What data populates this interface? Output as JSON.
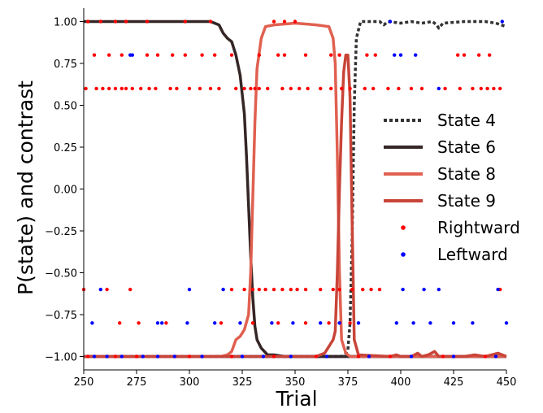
{
  "chart_data": {
    "type": "line",
    "title": "",
    "xlabel": "Trial",
    "ylabel": "P(state) and contrast",
    "xlim": [
      250,
      450
    ],
    "ylim": [
      -1.08,
      1.08
    ],
    "xticks": [
      250,
      275,
      300,
      325,
      350,
      375,
      400,
      425,
      450
    ],
    "yticks": [
      -1.0,
      -0.75,
      -0.5,
      -0.25,
      0.0,
      0.25,
      0.5,
      0.75,
      1.0
    ],
    "xtick_labels": [
      "250",
      "275",
      "300",
      "325",
      "350",
      "375",
      "400",
      "425",
      "450"
    ],
    "ytick_labels": [
      "−1.00",
      "−0.75",
      "−0.50",
      "−0.25",
      "0.00",
      "0.25",
      "0.50",
      "0.75",
      "1.00"
    ],
    "grid": false,
    "legend_position": "center-right",
    "series": [
      {
        "name": "State 4",
        "style": "dotted",
        "color": "#333333",
        "points": [
          [
            250,
            -1.0
          ],
          [
            372,
            -1.0
          ],
          [
            374,
            -0.98
          ],
          [
            375,
            -0.96
          ],
          [
            376,
            -0.8
          ],
          [
            377,
            -0.3
          ],
          [
            378,
            0.5
          ],
          [
            379,
            0.9
          ],
          [
            381,
            1.0
          ],
          [
            390,
            1.0
          ],
          [
            392,
            0.98
          ],
          [
            394,
            1.0
          ],
          [
            400,
            0.99
          ],
          [
            405,
            1.0
          ],
          [
            410,
            0.99
          ],
          [
            415,
            1.0
          ],
          [
            417,
            0.98
          ],
          [
            418,
            0.96
          ],
          [
            420,
            0.99
          ],
          [
            430,
            1.0
          ],
          [
            440,
            1.0
          ],
          [
            445,
            0.99
          ],
          [
            450,
            0.97
          ]
        ]
      },
      {
        "name": "State 6",
        "style": "solid",
        "color": "#352626",
        "points": [
          [
            250,
            1.0
          ],
          [
            310,
            1.0
          ],
          [
            314,
            0.98
          ],
          [
            316,
            0.93
          ],
          [
            318,
            0.9
          ],
          [
            320,
            0.88
          ],
          [
            322,
            0.8
          ],
          [
            324,
            0.68
          ],
          [
            326,
            0.45
          ],
          [
            327,
            0.2
          ],
          [
            328,
            -0.1
          ],
          [
            329,
            -0.4
          ],
          [
            330,
            -0.65
          ],
          [
            331,
            -0.82
          ],
          [
            332,
            -0.9
          ],
          [
            334,
            -0.95
          ],
          [
            337,
            -0.99
          ],
          [
            340,
            -0.99
          ],
          [
            345,
            -1.0
          ],
          [
            450,
            -1.0
          ]
        ]
      },
      {
        "name": "State 8",
        "style": "solid",
        "color": "#e06050",
        "points": [
          [
            250,
            -1.0
          ],
          [
            315,
            -1.0
          ],
          [
            318,
            -0.99
          ],
          [
            320,
            -0.97
          ],
          [
            322,
            -0.9
          ],
          [
            324,
            -0.88
          ],
          [
            326,
            -0.84
          ],
          [
            328,
            -0.75
          ],
          [
            329,
            -0.5
          ],
          [
            330,
            -0.05
          ],
          [
            331,
            0.4
          ],
          [
            332,
            0.72
          ],
          [
            334,
            0.9
          ],
          [
            336,
            0.97
          ],
          [
            340,
            0.98
          ],
          [
            350,
            0.99
          ],
          [
            360,
            0.98
          ],
          [
            366,
            0.97
          ],
          [
            368,
            0.9
          ],
          [
            369,
            0.75
          ],
          [
            370,
            0.2
          ],
          [
            371,
            -0.5
          ],
          [
            372,
            -0.9
          ],
          [
            374,
            -0.98
          ],
          [
            376,
            -1.0
          ],
          [
            450,
            -1.0
          ]
        ]
      },
      {
        "name": "State 9",
        "style": "solid",
        "color": "#c94438",
        "points": [
          [
            250,
            -1.0
          ],
          [
            360,
            -1.0
          ],
          [
            364,
            -0.98
          ],
          [
            366,
            -0.94
          ],
          [
            368,
            -0.9
          ],
          [
            369,
            -0.85
          ],
          [
            370,
            -0.5
          ],
          [
            371,
            0.0
          ],
          [
            372,
            0.4
          ],
          [
            373,
            0.7
          ],
          [
            374,
            0.8
          ],
          [
            375,
            0.8
          ],
          [
            376,
            0.55
          ],
          [
            377,
            -0.2
          ],
          [
            378,
            -0.9
          ],
          [
            380,
            -0.99
          ],
          [
            395,
            -1.0
          ],
          [
            398,
            -0.99
          ],
          [
            400,
            -1.0
          ],
          [
            405,
            -1.0
          ],
          [
            408,
            -0.98
          ],
          [
            410,
            -1.0
          ],
          [
            413,
            -0.99
          ],
          [
            416,
            -0.97
          ],
          [
            418,
            -1.0
          ],
          [
            430,
            -1.0
          ],
          [
            435,
            -0.99
          ],
          [
            440,
            -1.0
          ],
          [
            446,
            -0.98
          ],
          [
            450,
            -1.0
          ]
        ]
      },
      {
        "name": "Rightward",
        "style": "markers",
        "color": "#ff0000",
        "points": [
          [
            252,
            1.0
          ],
          [
            255,
            0.8
          ],
          [
            262,
            0.8
          ],
          [
            268,
            0.8
          ],
          [
            280,
            0.8
          ],
          [
            285,
            0.8
          ],
          [
            292,
            0.8
          ],
          [
            298,
            0.8
          ],
          [
            306,
            0.8
          ],
          [
            312,
            0.8
          ],
          [
            320,
            0.8
          ],
          [
            333,
            0.8
          ],
          [
            342,
            0.8
          ],
          [
            345,
            0.8
          ],
          [
            355,
            0.8
          ],
          [
            367,
            0.8
          ],
          [
            371,
            0.8
          ],
          [
            384,
            0.8
          ],
          [
            388,
            0.8
          ],
          [
            427,
            0.8
          ],
          [
            430,
            0.8
          ],
          [
            437,
            0.8
          ],
          [
            442,
            0.8
          ],
          [
            251,
            0.6
          ],
          [
            256,
            0.6
          ],
          [
            259,
            0.6
          ],
          [
            262,
            0.6
          ],
          [
            265,
            0.6
          ],
          [
            268,
            0.6
          ],
          [
            270,
            0.6
          ],
          [
            273,
            0.6
          ],
          [
            277,
            0.6
          ],
          [
            281,
            0.6
          ],
          [
            284,
            0.6
          ],
          [
            291,
            0.6
          ],
          [
            294,
            0.6
          ],
          [
            300,
            0.6
          ],
          [
            305,
            0.6
          ],
          [
            310,
            0.6
          ],
          [
            314,
            0.6
          ],
          [
            322,
            0.6
          ],
          [
            326,
            0.6
          ],
          [
            329,
            0.6
          ],
          [
            331,
            0.6
          ],
          [
            333,
            0.6
          ],
          [
            337,
            0.6
          ],
          [
            344,
            0.6
          ],
          [
            348,
            0.6
          ],
          [
            352,
            0.6
          ],
          [
            356,
            0.6
          ],
          [
            362,
            0.6
          ],
          [
            367,
            0.6
          ],
          [
            372,
            0.6
          ],
          [
            376,
            0.6
          ],
          [
            383,
            0.6
          ],
          [
            387,
            0.6
          ],
          [
            394,
            0.6
          ],
          [
            399,
            0.6
          ],
          [
            405,
            0.6
          ],
          [
            410,
            0.6
          ],
          [
            421,
            0.6
          ],
          [
            428,
            0.6
          ],
          [
            434,
            0.6
          ],
          [
            438,
            0.6
          ],
          [
            441,
            0.6
          ],
          [
            444,
            0.6
          ],
          [
            447,
            0.6
          ],
          [
            258,
            1.0
          ],
          [
            265,
            1.0
          ],
          [
            270,
            1.0
          ],
          [
            280,
            1.0
          ],
          [
            298,
            1.0
          ],
          [
            310,
            1.0
          ],
          [
            340,
            1.0
          ],
          [
            345,
            1.0
          ],
          [
            350,
            1.0
          ],
          [
            351,
            -0.6
          ],
          [
            355,
            -0.6
          ],
          [
            362,
            -0.6
          ],
          [
            368,
            -0.6
          ],
          [
            371,
            -0.6
          ],
          [
            382,
            -0.6
          ],
          [
            386,
            -0.6
          ],
          [
            390,
            -0.6
          ],
          [
            250,
            -0.6
          ],
          [
            261,
            -0.6
          ],
          [
            272,
            -0.6
          ],
          [
            320,
            -0.6
          ],
          [
            326,
            -0.6
          ],
          [
            330,
            -0.6
          ],
          [
            333,
            -0.6
          ],
          [
            336,
            -0.6
          ],
          [
            340,
            -0.6
          ],
          [
            344,
            -0.6
          ],
          [
            348,
            -0.6
          ],
          [
            377,
            -0.6
          ],
          [
            447,
            -0.6
          ],
          [
            267,
            -0.8
          ],
          [
            276,
            -0.8
          ],
          [
            289,
            -0.8
          ],
          [
            315,
            -0.8
          ],
          [
            330,
            -0.8
          ],
          [
            342,
            -0.8
          ],
          [
            355,
            -0.8
          ],
          [
            366,
            -0.8
          ],
          [
            376,
            -0.8
          ],
          [
            252,
            -1.0
          ],
          [
            265,
            -1.0
          ],
          [
            275,
            -1.0
          ],
          [
            300,
            -1.0
          ],
          [
            320,
            -1.0
          ],
          [
            340,
            -1.0
          ],
          [
            360,
            -1.0
          ],
          [
            380,
            -1.0
          ],
          [
            395,
            -1.0
          ],
          [
            420,
            -1.0
          ],
          [
            440,
            -1.0
          ]
        ]
      },
      {
        "name": "Leftward",
        "style": "markers",
        "color": "#0000ff",
        "points": [
          [
            272,
            0.8
          ],
          [
            273,
            0.8
          ],
          [
            397,
            0.8
          ],
          [
            400,
            0.8
          ],
          [
            407,
            0.8
          ],
          [
            418,
            0.6
          ],
          [
            258,
            -0.6
          ],
          [
            300,
            -0.6
          ],
          [
            316,
            -0.6
          ],
          [
            401,
            -0.6
          ],
          [
            411,
            -0.6
          ],
          [
            418,
            -0.6
          ],
          [
            446,
            -0.6
          ],
          [
            254,
            -0.8
          ],
          [
            285,
            -0.8
          ],
          [
            287,
            -0.8
          ],
          [
            299,
            -0.8
          ],
          [
            312,
            -0.8
          ],
          [
            324,
            -0.8
          ],
          [
            339,
            -0.8
          ],
          [
            349,
            -0.8
          ],
          [
            362,
            -0.8
          ],
          [
            371,
            -0.8
          ],
          [
            380,
            -0.8
          ],
          [
            398,
            -0.8
          ],
          [
            406,
            -0.8
          ],
          [
            414,
            -0.8
          ],
          [
            425,
            -0.8
          ],
          [
            434,
            -0.8
          ],
          [
            450,
            -0.8
          ],
          [
            395,
            1.0
          ],
          [
            448,
            1.0
          ],
          [
            255,
            -1.0
          ],
          [
            261,
            -1.0
          ],
          [
            268,
            -1.0
          ],
          [
            278,
            -1.0
          ],
          [
            285,
            -1.0
          ],
          [
            293,
            -1.0
          ],
          [
            306,
            -1.0
          ],
          [
            325,
            -1.0
          ],
          [
            335,
            -1.0
          ],
          [
            348,
            -1.0
          ],
          [
            365,
            -1.0
          ],
          [
            385,
            -1.0
          ],
          [
            405,
            -1.0
          ],
          [
            425,
            -1.0
          ],
          [
            445,
            -1.0
          ]
        ]
      }
    ],
    "baseline_band": {
      "y": -1.0,
      "color": "#7090e0"
    }
  }
}
